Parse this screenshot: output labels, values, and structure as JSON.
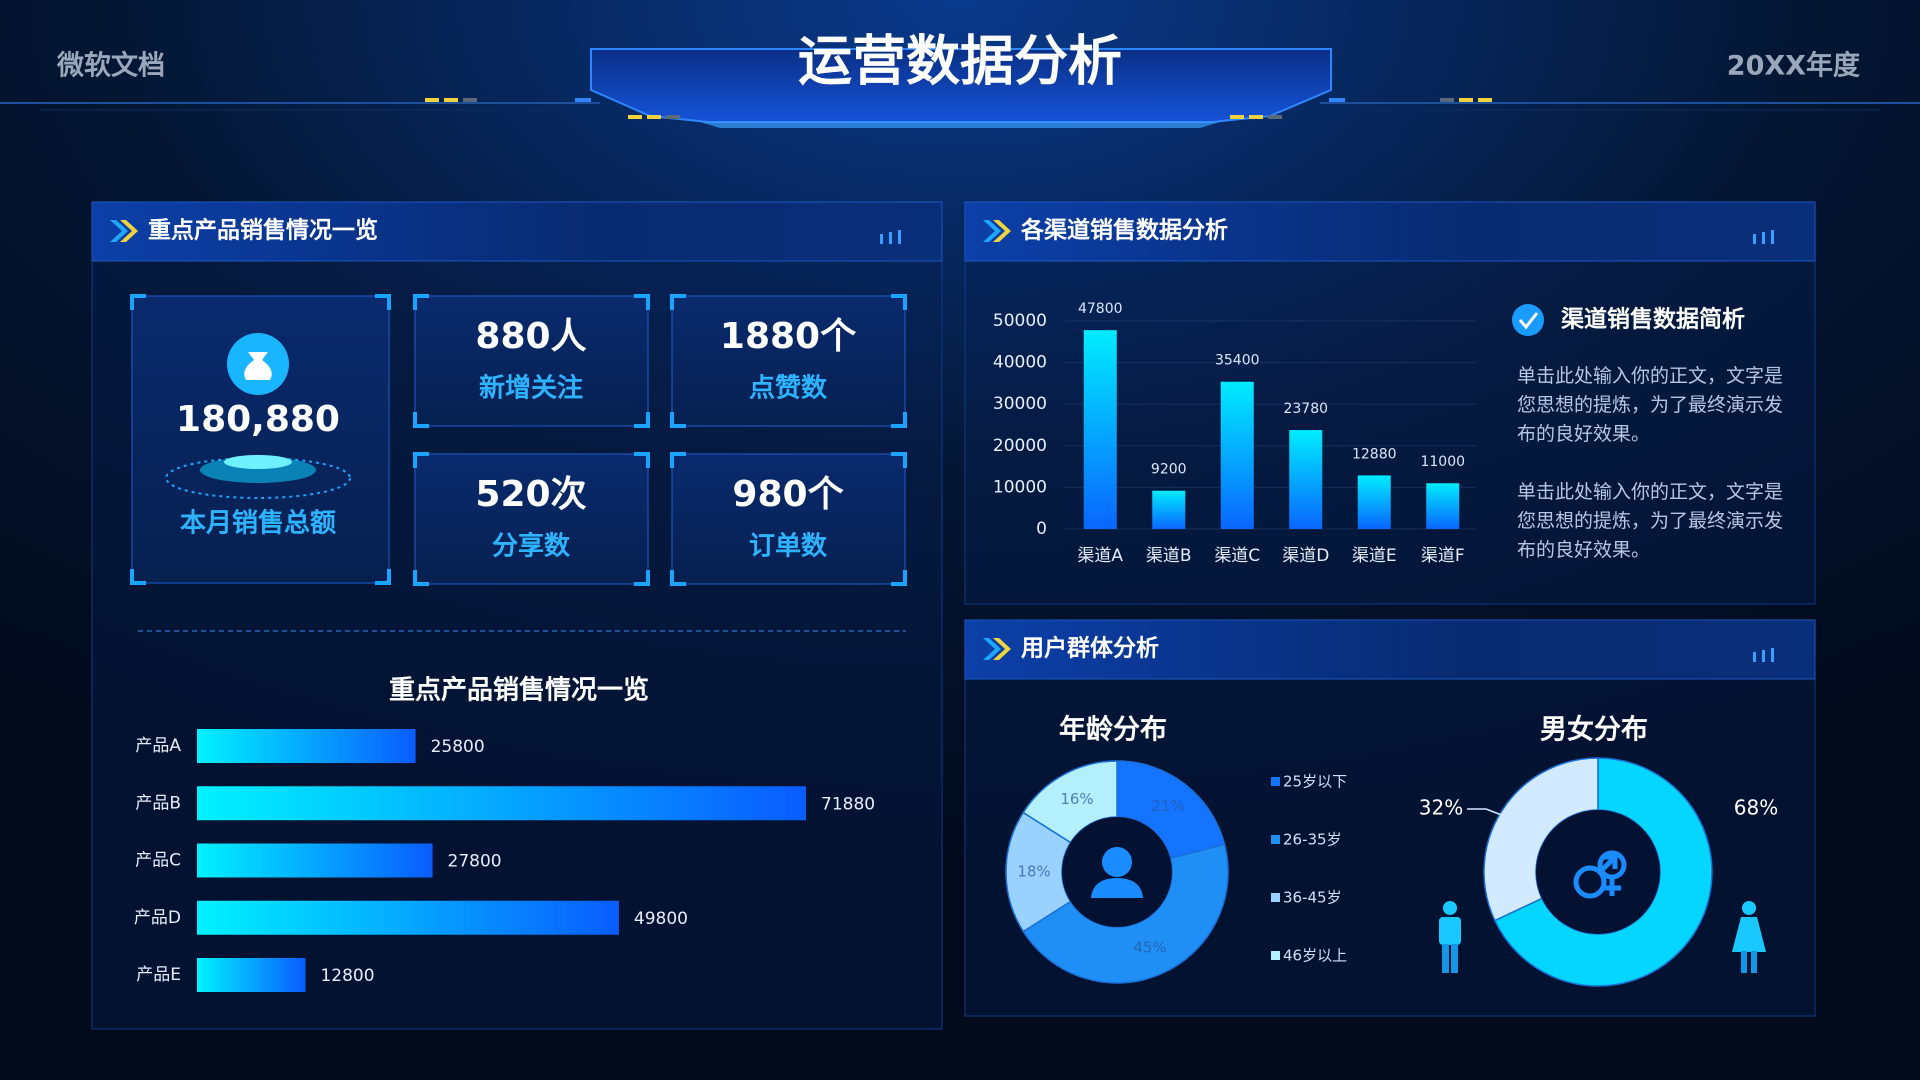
{
  "header": {
    "left": "微软文档",
    "title": "运营数据分析",
    "right": "20XX年度"
  },
  "panels": {
    "products": {
      "title": "重点产品销售情况一览"
    },
    "channels": {
      "title": "各渠道销售数据分析",
      "note_title": "渠道销售数据简析",
      "notes": [
        "单击此处输入你的正文，文字是您思想的提炼，为了最终演示发布的良好效果。",
        "单击此处输入你的正文，文字是您思想的提炼，为了最终演示发布的良好效果。"
      ]
    },
    "users": {
      "title": "用户群体分析"
    }
  },
  "stats": {
    "total": {
      "value": "180,880",
      "label": "本月销售总额"
    },
    "cards": [
      {
        "value": "880人",
        "label": "新增关注"
      },
      {
        "value": "1880个",
        "label": "点赞数"
      },
      {
        "value": "520次",
        "label": "分享数"
      },
      {
        "value": "980个",
        "label": "订单数"
      }
    ]
  },
  "chart_data": [
    {
      "type": "hbar",
      "title": "重点产品销售情况一览",
      "categories": [
        "产品A",
        "产品B",
        "产品C",
        "产品D",
        "产品E"
      ],
      "values": [
        25800,
        71880,
        27800,
        49800,
        12800
      ],
      "colors": [
        "#00f2ff",
        "#0a5cff"
      ]
    },
    {
      "type": "bar",
      "categories": [
        "渠道A",
        "渠道B",
        "渠道C",
        "渠道D",
        "渠道E",
        "渠道F"
      ],
      "values": [
        47800,
        9200,
        35400,
        23780,
        12880,
        11000
      ],
      "ylim": [
        0,
        50000
      ],
      "yticks": [
        0,
        10000,
        20000,
        30000,
        40000,
        50000
      ],
      "grid": true,
      "colors": [
        "#00ecff",
        "#0a66ff"
      ]
    },
    {
      "type": "donut",
      "title": "年龄分布",
      "categories": [
        "25岁以下",
        "26-35岁",
        "36-45岁",
        "46岁以上"
      ],
      "values": [
        21,
        45,
        18,
        16
      ],
      "value_labels": [
        "21%",
        "45%",
        "18%",
        "16%"
      ],
      "colors": [
        "#1473ff",
        "#1f8ff5",
        "#9ad2ff",
        "#b3efff"
      ],
      "legend": true
    },
    {
      "type": "donut",
      "title": "男女分布",
      "categories": [
        null,
        null
      ],
      "values": [
        68,
        32
      ],
      "value_labels": [
        "68%",
        "32%"
      ],
      "colors": [
        "#05d6ff",
        "#d2eaff"
      ],
      "legend": false
    }
  ]
}
